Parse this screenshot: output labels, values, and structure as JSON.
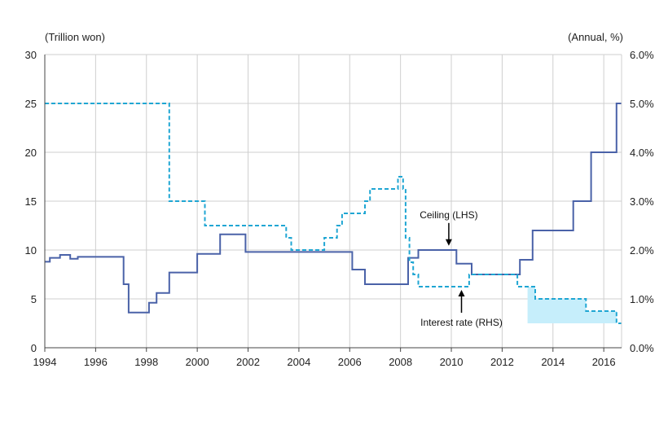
{
  "chart_data": {
    "type": "line",
    "title": "",
    "left_axis_unit": "(Trillion won)",
    "right_axis_unit": "(Annual, %)",
    "x_range": [
      1994,
      2016.7
    ],
    "x_ticks": [
      {
        "value": 1994,
        "label": "1994"
      },
      {
        "value": 1996,
        "label": "1996"
      },
      {
        "value": 1998,
        "label": "1998"
      },
      {
        "value": 2000,
        "label": "2000"
      },
      {
        "value": 2002,
        "label": "2002"
      },
      {
        "value": 2004,
        "label": "2004"
      },
      {
        "value": 2006,
        "label": "2006"
      },
      {
        "value": 2008,
        "label": "2008"
      },
      {
        "value": 2010,
        "label": "2010"
      },
      {
        "value": 2012,
        "label": "2012"
      },
      {
        "value": 2014,
        "label": "2014"
      },
      {
        "value": 2016,
        "label": "2016"
      }
    ],
    "y_left_range": [
      0,
      30
    ],
    "y_left_ticks": [
      {
        "value": 0,
        "label": "0"
      },
      {
        "value": 5,
        "label": "5"
      },
      {
        "value": 10,
        "label": "10"
      },
      {
        "value": 15,
        "label": "15"
      },
      {
        "value": 20,
        "label": "20"
      },
      {
        "value": 25,
        "label": "25"
      },
      {
        "value": 30,
        "label": "30"
      }
    ],
    "y_right_range": [
      0,
      6
    ],
    "y_right_ticks": [
      {
        "value": 0,
        "label": "0.0%"
      },
      {
        "value": 1,
        "label": "1.0%"
      },
      {
        "value": 2,
        "label": "2.0%"
      },
      {
        "value": 3,
        "label": "3.0%"
      },
      {
        "value": 4,
        "label": "4.0%"
      },
      {
        "value": 5,
        "label": "5.0%"
      },
      {
        "value": 6,
        "label": "6.0%"
      }
    ],
    "grid": true,
    "series": [
      {
        "name": "Ceiling (LHS)",
        "axis": "left",
        "style": "solid-step",
        "color": "#4a62a8",
        "points": [
          [
            1994.0,
            8.8
          ],
          [
            1994.2,
            9.2
          ],
          [
            1994.6,
            9.5
          ],
          [
            1995.0,
            9.1
          ],
          [
            1995.3,
            9.3
          ],
          [
            1997.0,
            9.3
          ],
          [
            1997.1,
            6.5
          ],
          [
            1997.3,
            3.6
          ],
          [
            1998.1,
            4.6
          ],
          [
            1998.4,
            5.6
          ],
          [
            1998.9,
            7.7
          ],
          [
            2000.0,
            9.6
          ],
          [
            2000.9,
            11.6
          ],
          [
            2001.9,
            9.8
          ],
          [
            2006.1,
            8.0
          ],
          [
            2006.6,
            6.5
          ],
          [
            2008.3,
            9.2
          ],
          [
            2008.7,
            10.0
          ],
          [
            2010.2,
            8.6
          ],
          [
            2010.8,
            7.5
          ],
          [
            2012.7,
            9.0
          ],
          [
            2013.2,
            12.0
          ],
          [
            2014.8,
            15.0
          ],
          [
            2015.5,
            20.0
          ],
          [
            2016.5,
            25.0
          ],
          [
            2016.7,
            25.0
          ]
        ]
      },
      {
        "name": "Interest rate (RHS)",
        "axis": "right",
        "style": "dashed-step",
        "color": "#1fa6d3",
        "points": [
          [
            1994.0,
            5.0
          ],
          [
            1998.9,
            3.0
          ],
          [
            2000.3,
            2.5
          ],
          [
            2003.5,
            2.25
          ],
          [
            2003.7,
            2.0
          ],
          [
            2005.0,
            2.25
          ],
          [
            2005.5,
            2.5
          ],
          [
            2005.7,
            2.75
          ],
          [
            2006.6,
            3.0
          ],
          [
            2006.8,
            3.25
          ],
          [
            2007.9,
            3.5
          ],
          [
            2008.1,
            3.25
          ],
          [
            2008.2,
            2.25
          ],
          [
            2008.35,
            1.75
          ],
          [
            2008.5,
            1.5
          ],
          [
            2008.7,
            1.25
          ],
          [
            2010.7,
            1.5
          ],
          [
            2012.6,
            1.25
          ],
          [
            2013.3,
            1.0
          ],
          [
            2015.3,
            0.75
          ],
          [
            2016.5,
            0.5
          ],
          [
            2016.7,
            0.5
          ]
        ]
      }
    ],
    "shaded_band": {
      "axis": "right",
      "x_start": 2013.0,
      "x_end": 2016.7,
      "lower": 0.5,
      "upper_from": "Interest rate (RHS)",
      "color": "#c6eefb"
    },
    "annotations": [
      {
        "text": "Ceiling (LHS)",
        "anchor_x": 2009.9,
        "anchor_y_left": 10.1,
        "arrow": "down"
      },
      {
        "text": "Interest rate (RHS)",
        "anchor_x": 2010.4,
        "anchor_y_right": 1.25,
        "arrow": "up"
      }
    ]
  }
}
